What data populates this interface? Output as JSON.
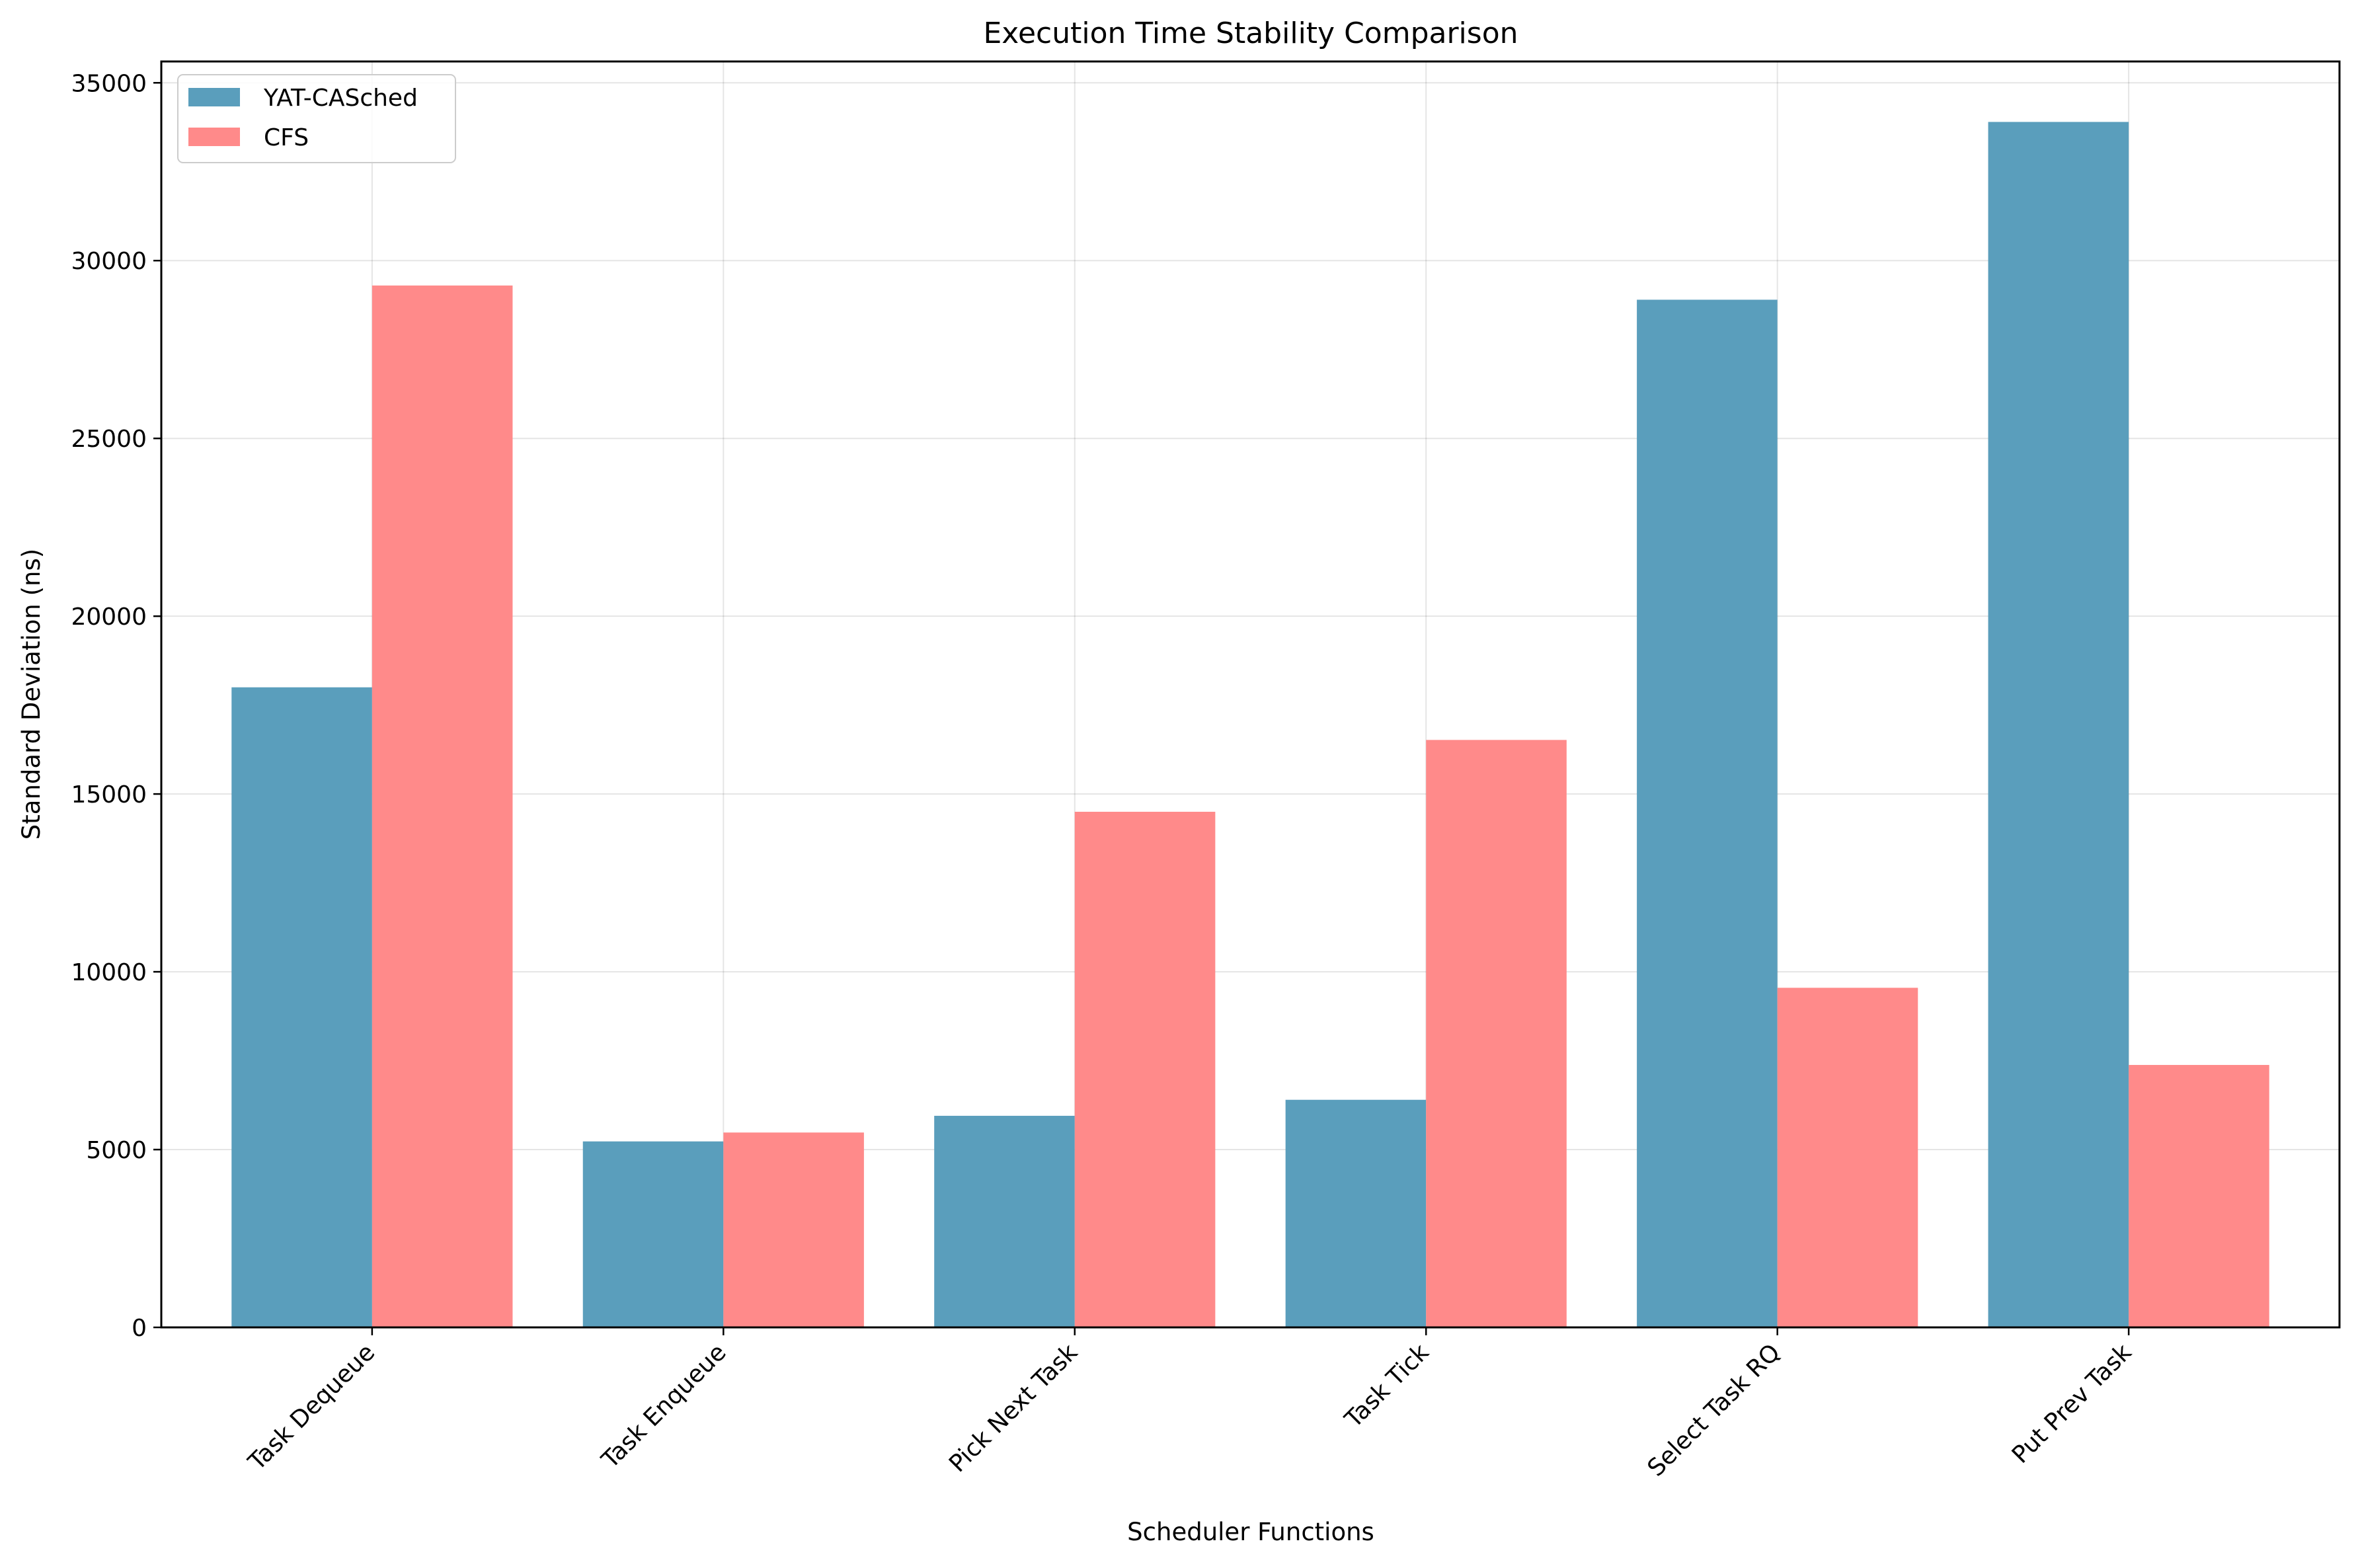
{
  "chart_data": {
    "type": "bar",
    "title": "Execution Time Stability Comparison",
    "xlabel": "Scheduler Functions",
    "ylabel": "Standard Deviation (ns)",
    "categories": [
      "Task Dequeue",
      "Task Enqueue",
      "Pick Next Task",
      "Task Tick",
      "Select Task RQ",
      "Put Prev Task"
    ],
    "series": [
      {
        "name": "YAT-CASched",
        "color": "#5a9ebc",
        "values": [
          18000,
          5230,
          5950,
          6400,
          28900,
          33900
        ]
      },
      {
        "name": "CFS",
        "color": "#ff8a8a",
        "values": [
          29300,
          5480,
          14500,
          16520,
          9550,
          7380
        ]
      }
    ],
    "ylim": [
      0,
      35600
    ],
    "yticks": [
      0,
      5000,
      10000,
      15000,
      20000,
      25000,
      30000,
      35000
    ],
    "ytick_labels": [
      "0",
      "5000",
      "10000",
      "15000",
      "20000",
      "25000",
      "30000",
      "35000"
    ],
    "grid": true,
    "legend_position": "top-left"
  }
}
